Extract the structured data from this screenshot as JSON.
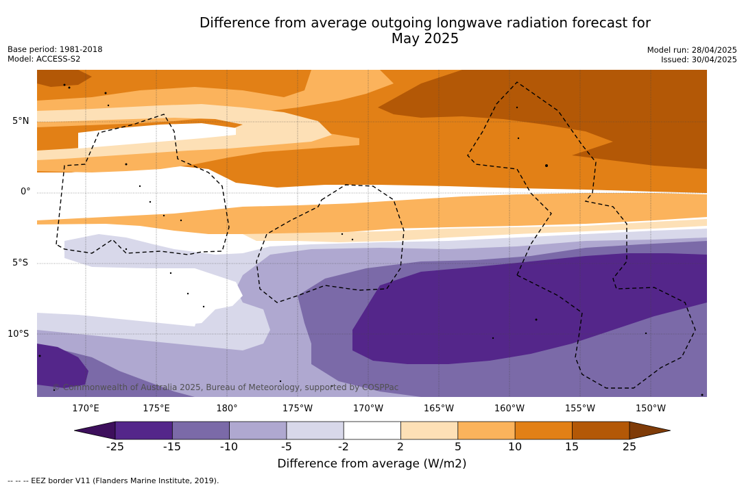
{
  "title_line1": "Difference from average outgoing longwave radiation forecast for",
  "title_line2": "May 2025",
  "base_period": "Base period: 1981-2018",
  "model": "Model: ACCESS-S2",
  "model_run": "Model run: 28/04/2025",
  "issued": "Issued: 30/04/2025",
  "copyright": "© Commonwealth of Australia 2025, Bureau of Meteorology, supported by COSPPac",
  "lat_labels": [
    "5°N",
    "0°",
    "5°S",
    "10°S"
  ],
  "lon_labels": [
    "170°E",
    "175°E",
    "180°",
    "175°W",
    "170°W",
    "165°W",
    "160°W",
    "155°W",
    "150°W"
  ],
  "colorbar": {
    "label": "Difference from average (W/m2)",
    "ticks": [
      "-25",
      "-15",
      "-10",
      "-5",
      "-2",
      "2",
      "5",
      "10",
      "15",
      "25"
    ],
    "colors": [
      "#3d0f5c",
      "#54268a",
      "#7b6aa8",
      "#afa8d0",
      "#d8d8ea",
      "#ffffff",
      "#fde0b6",
      "#fbb35c",
      "#e28016",
      "#b35806",
      "#7f3b08"
    ]
  },
  "eez_note": "--  --  -- EEZ border V11 (Flanders Marine Institute, 2019)."
}
